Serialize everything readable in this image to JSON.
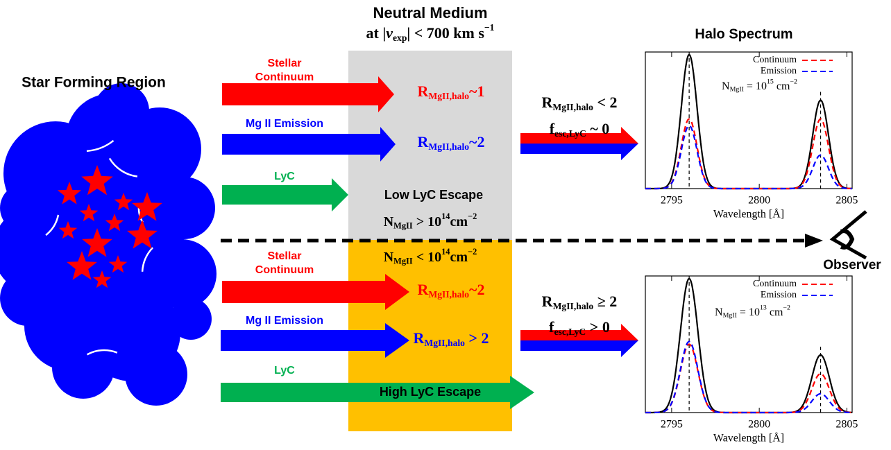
{
  "left_title": "Star Forming Region",
  "medium_title": "Neutral Medium",
  "medium_condition": {
    "before": "at |",
    "var": "v",
    "sub": "exp",
    "after": "| < 700 km s",
    "sup": "−1"
  },
  "halo_title": "Halo Spectrum",
  "observer": "Observer",
  "upper": {
    "continuum_label": [
      "Stellar",
      "Continuum"
    ],
    "continuum_ratio": {
      "base": "R",
      "sub": "MgII,halo",
      "rel": "~1"
    },
    "emission_label": "Mg II Emission",
    "emission_ratio": {
      "base": "R",
      "sub": "MgII,halo",
      "rel": "~2"
    },
    "lyc_label": "LyC",
    "escape": "Low LyC Escape",
    "column": {
      "base": "N",
      "sub": "MgII",
      "rel": " > 10",
      "sup": "14",
      "unit": "cm",
      "unit_sup": "−2"
    },
    "ratio": {
      "base": "R",
      "sub": "MgII,halo",
      "rel": " < 2"
    },
    "fesc": {
      "base": "f",
      "sub": "esc,LyC",
      "rel": " ~ 0"
    },
    "spectrum": {
      "xlim": [
        2793.5,
        2805.3
      ],
      "ylim": [
        0,
        1.02
      ],
      "xticks": [
        2795,
        2800,
        2805
      ],
      "xlabel": "Wavelength [Å]",
      "annotation": {
        "base": "N",
        "sub": "MgII",
        "rel": " = 10",
        "sup": "15",
        "unit": " cm",
        "unit_sup": "−2"
      },
      "centers": [
        2796.0,
        2803.5
      ],
      "line_width": 0.45,
      "series": [
        {
          "color": "#000000",
          "peaks": [
            1,
            0.66
          ]
        },
        {
          "name": "Continuum",
          "color": "#ff0000",
          "dashed": true,
          "peaks": [
            0.52,
            0.52
          ]
        },
        {
          "name": "Emission",
          "color": "#0000ff",
          "dashed": true,
          "peaks": [
            0.47,
            0.25
          ]
        }
      ]
    }
  },
  "lower": {
    "continuum_label": [
      "Stellar",
      "Continuum"
    ],
    "continuum_ratio": {
      "base": "R",
      "sub": "MgII,halo",
      "rel": "~2"
    },
    "emission_label": "Mg II Emission",
    "emission_ratio": {
      "base": "R",
      "sub": "MgII,halo",
      "rel": " > 2"
    },
    "lyc_label": "LyC",
    "escape": "High LyC Escape",
    "column": {
      "base": "N",
      "sub": "MgII",
      "rel": " < 10",
      "sup": "14",
      "unit": "cm",
      "unit_sup": "−2"
    },
    "ratio": {
      "base": "R",
      "sub": "MgII,halo",
      "rel": " ≥ 2"
    },
    "fesc": {
      "base": "f",
      "sub": "esc,LyC",
      "rel": " > 0"
    },
    "spectrum": {
      "xlim": [
        2793.5,
        2805.3
      ],
      "ylim": [
        0,
        1.02
      ],
      "xticks": [
        2795,
        2800,
        2805
      ],
      "xlabel": "Wavelength [Å]",
      "annotation": {
        "base": "N",
        "sub": "MgII",
        "rel": " = 10",
        "sup": "13",
        "unit": " cm",
        "unit_sup": "−2"
      },
      "centers": [
        2796.0,
        2803.5
      ],
      "line_width": 0.5,
      "series": [
        {
          "color": "#000000",
          "peaks": [
            1,
            0.43
          ]
        },
        {
          "name": "Continuum",
          "color": "#ff0000",
          "dashed": true,
          "peaks": [
            0.51,
            0.29
          ]
        },
        {
          "name": "Emission",
          "color": "#0000ff",
          "dashed": true,
          "peaks": [
            0.53,
            0.14
          ]
        }
      ]
    }
  }
}
